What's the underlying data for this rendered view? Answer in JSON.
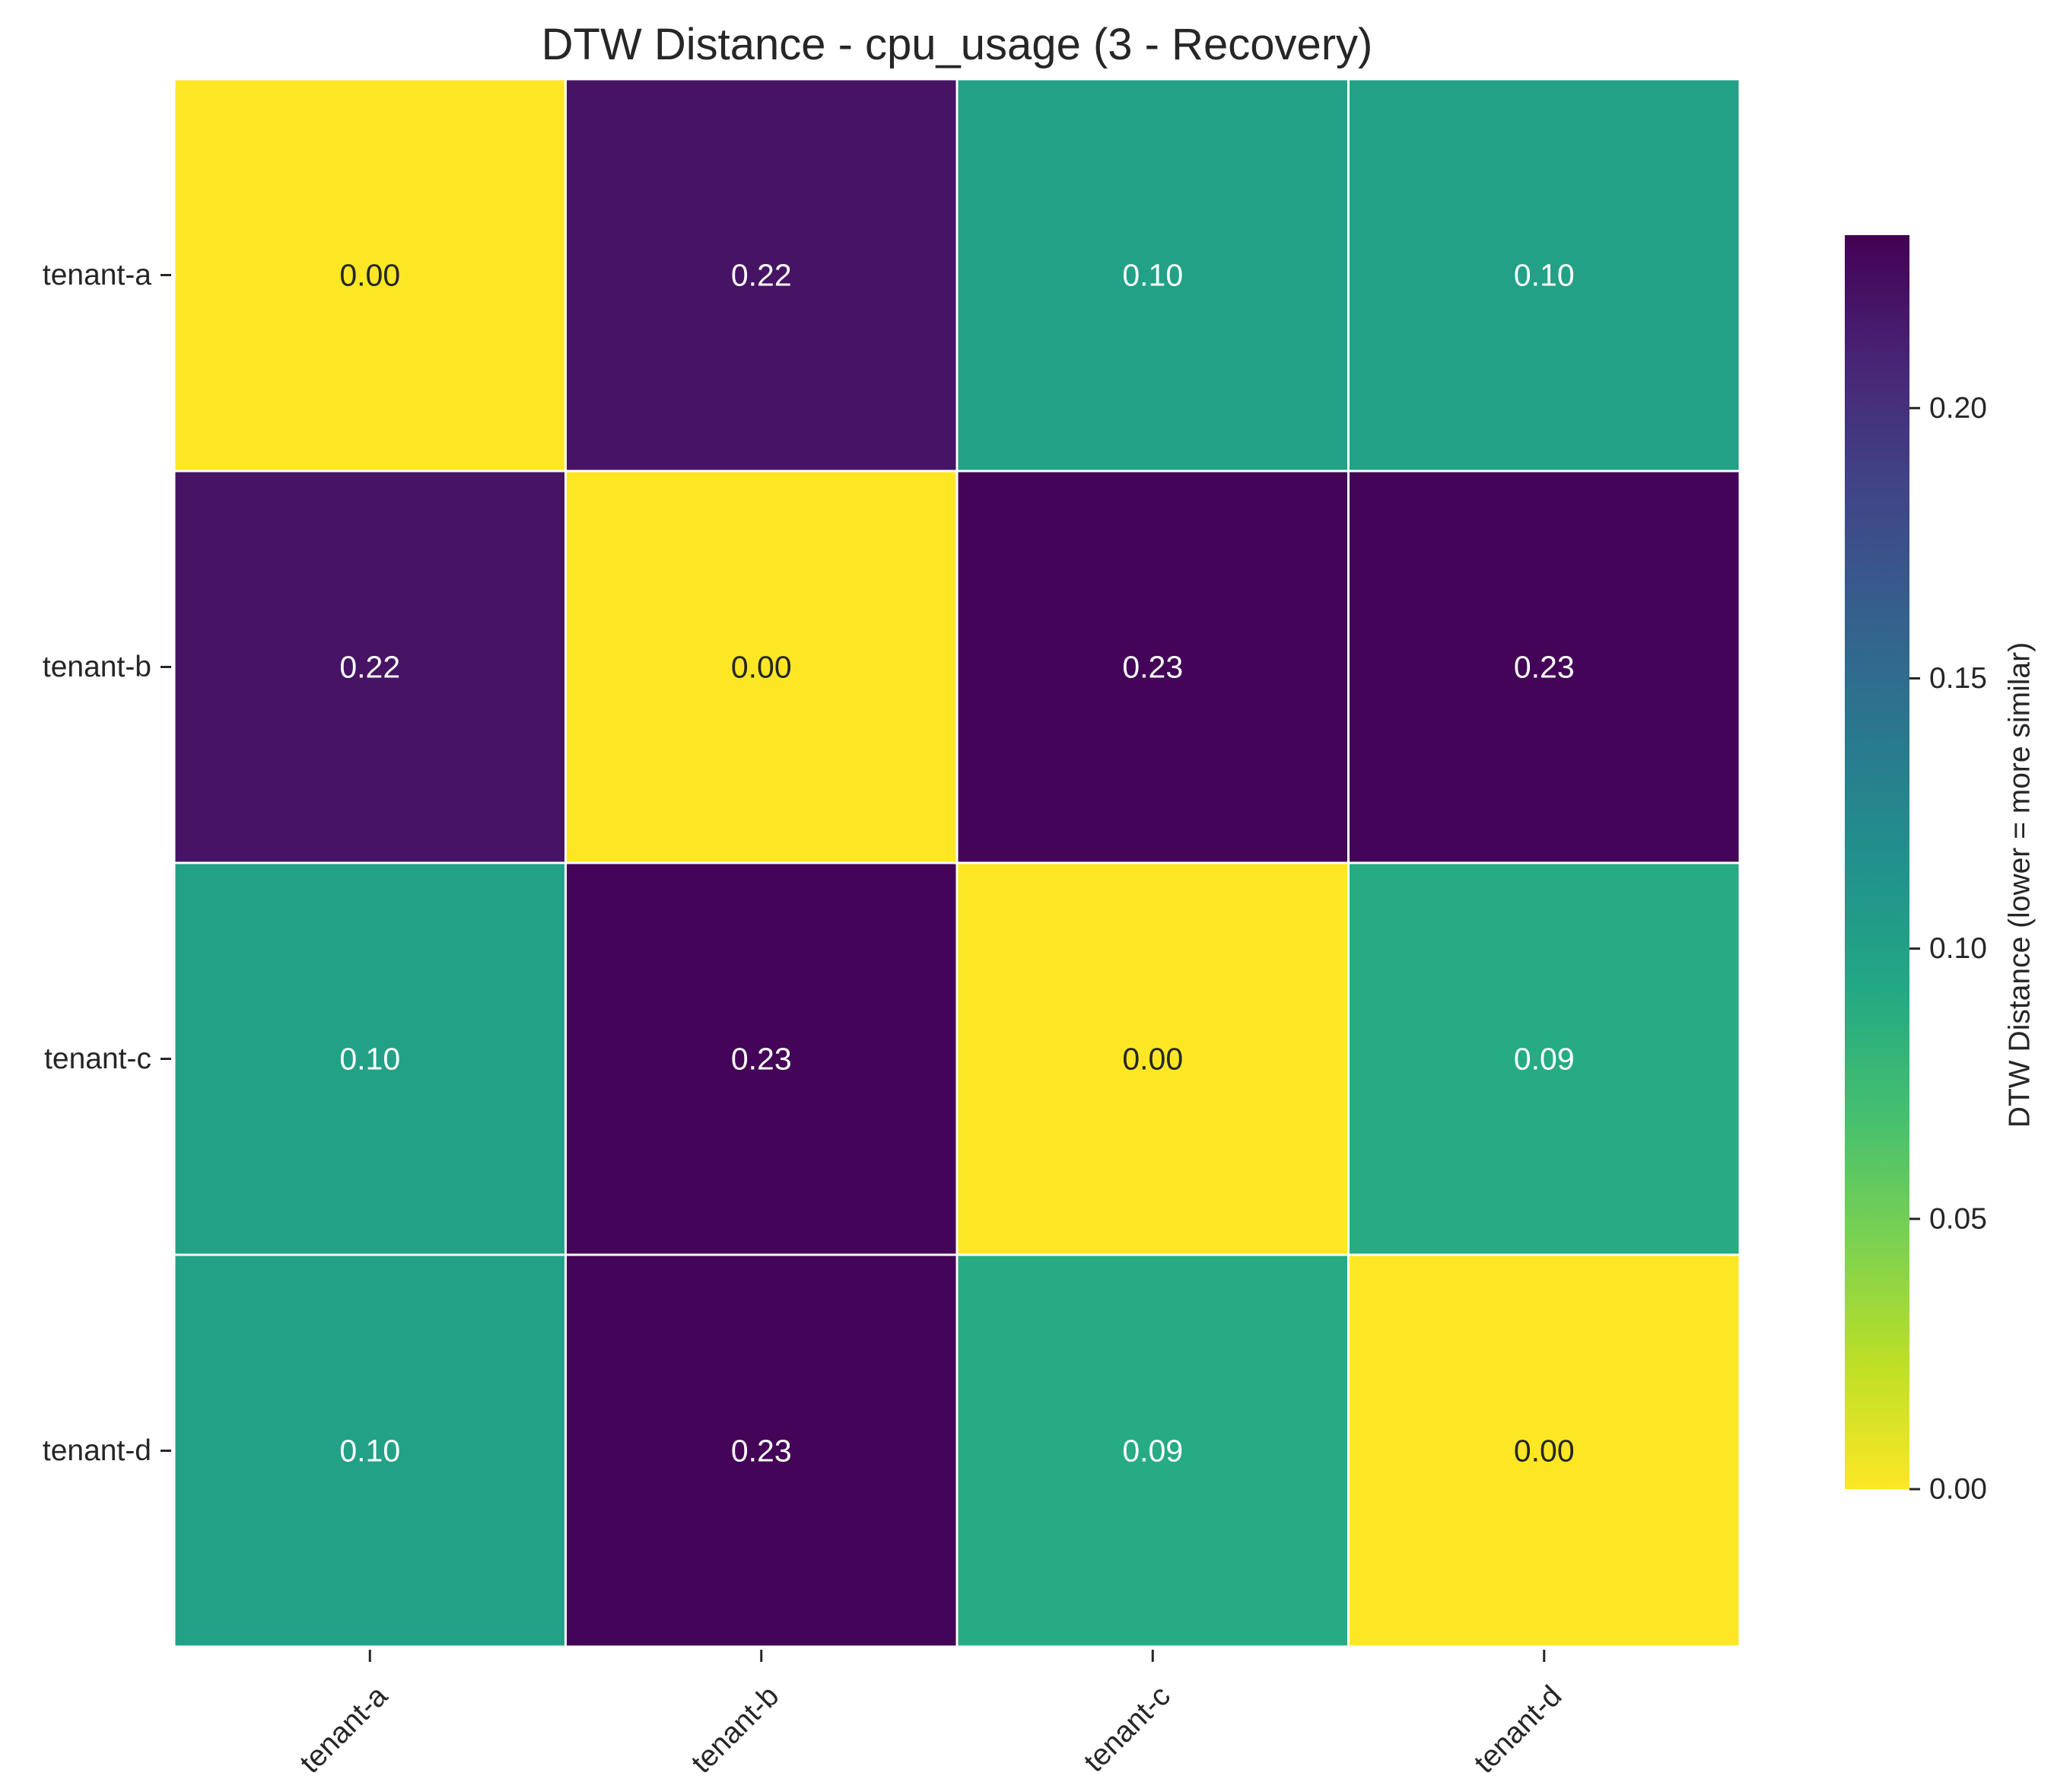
{
  "chart_data": {
    "type": "heatmap",
    "title": "DTW Distance - cpu_usage (3 - Recovery)",
    "xlabel": "",
    "ylabel": "",
    "x_categories": [
      "tenant-a",
      "tenant-b",
      "tenant-c",
      "tenant-d"
    ],
    "y_categories": [
      "tenant-a",
      "tenant-b",
      "tenant-c",
      "tenant-d"
    ],
    "values": [
      [
        0.0,
        0.22,
        0.1,
        0.1
      ],
      [
        0.22,
        0.0,
        0.23,
        0.23
      ],
      [
        0.1,
        0.23,
        0.0,
        0.09
      ],
      [
        0.1,
        0.23,
        0.09,
        0.0
      ]
    ],
    "cell_labels": [
      [
        "0.00",
        "0.22",
        "0.10",
        "0.10"
      ],
      [
        "0.22",
        "0.00",
        "0.23",
        "0.23"
      ],
      [
        "0.10",
        "0.23",
        "0.00",
        "0.09"
      ],
      [
        "0.10",
        "0.23",
        "0.09",
        "0.00"
      ]
    ],
    "colormap": "viridis_r",
    "vmin": 0.0,
    "vmax": 0.232,
    "colorbar": {
      "label": "DTW Distance (lower = more similar)",
      "ticks": [
        0.0,
        0.05,
        0.1,
        0.15,
        0.2
      ],
      "tick_labels": [
        "0.00",
        "0.05",
        "0.10",
        "0.15",
        "0.20"
      ],
      "placement": "right"
    },
    "grid": false,
    "cell_border_color": "#ffffff"
  }
}
